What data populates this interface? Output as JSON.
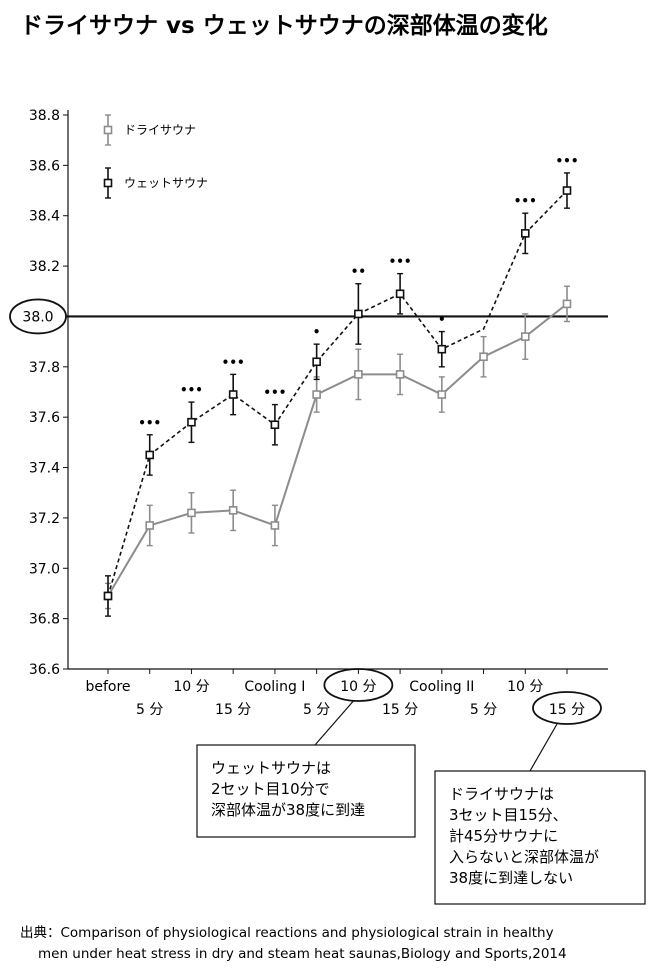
{
  "chart_data": {
    "type": "line",
    "title": "ドライサウナ vs ウェットサウナの深部体温の変化",
    "xlabel": "",
    "ylabel": "",
    "ylim": [
      36.6,
      38.8
    ],
    "yticks": [
      "36.6",
      "36.8",
      "37.0",
      "37.2",
      "37.4",
      "37.6",
      "37.8",
      "38.0",
      "38.2",
      "38.4",
      "38.6",
      "38.8"
    ],
    "categories": [
      "before",
      "5 分",
      "10 分",
      "15 分",
      "Cooling I",
      "5 分",
      "10 分",
      "15 分",
      "Cooling II",
      "5 分",
      "10 分",
      "15 分"
    ],
    "category_rows": [
      "upper",
      "lower",
      "upper",
      "lower",
      "upper",
      "lower",
      "upper",
      "lower",
      "upper",
      "lower",
      "upper",
      "lower"
    ],
    "reference_line": {
      "value": 38.0,
      "label": "38.0"
    },
    "legend_position": "top-left",
    "series": [
      {
        "name": "ドライサウナ",
        "style": "solid",
        "color": "#8c8c8c",
        "values": [
          36.89,
          37.17,
          37.22,
          37.23,
          37.17,
          37.69,
          37.77,
          37.77,
          37.69,
          37.84,
          37.92,
          38.05
        ],
        "errors": [
          0.05,
          0.08,
          0.08,
          0.08,
          0.08,
          0.07,
          0.1,
          0.08,
          0.07,
          0.08,
          0.09,
          0.07
        ],
        "markers": [
          true,
          true,
          true,
          true,
          true,
          true,
          true,
          true,
          true,
          true,
          true,
          true
        ]
      },
      {
        "name": "ウェットサウナ",
        "style": "dashed",
        "color": "#111111",
        "values": [
          36.89,
          37.45,
          37.58,
          37.69,
          37.57,
          37.82,
          38.01,
          38.09,
          37.87,
          37.95,
          38.33,
          38.5
        ],
        "errors": [
          0.08,
          0.08,
          0.08,
          0.08,
          0.08,
          0.07,
          0.12,
          0.08,
          0.07,
          0.0,
          0.08,
          0.07
        ],
        "markers": [
          true,
          true,
          true,
          true,
          true,
          true,
          true,
          true,
          true,
          false,
          true,
          true
        ]
      }
    ],
    "significance": [
      "",
      "•••",
      "•••",
      "•••",
      "•••",
      "•",
      "••",
      "•••",
      "•",
      "",
      "•••",
      "•••"
    ],
    "annotations": [
      {
        "target": "10 分",
        "lines": [
          "ウェットサウナは",
          "2セット目10分で",
          "深部体温が38度に到達"
        ]
      },
      {
        "target": "15 分",
        "lines": [
          "ドライサウナは",
          "3セット目15分、",
          "計45分サウナに",
          "入らないと深部体温が",
          "38度に到達しない"
        ]
      }
    ]
  },
  "source": {
    "line1": "出典：Comparison of physiological reactions and physiological strain in healthy",
    "line2": "men under heat stress in dry and steam heat saunas,Biology and Sports,2014"
  }
}
